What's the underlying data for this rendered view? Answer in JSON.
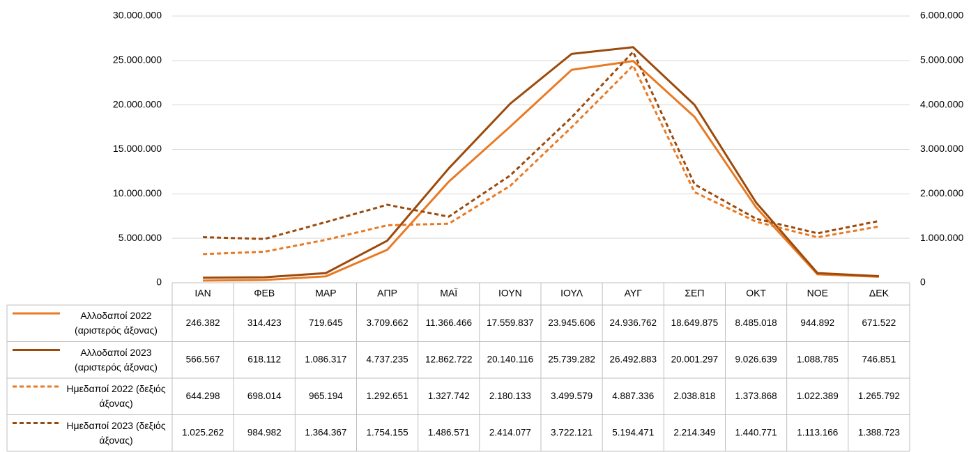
{
  "chart_data": {
    "type": "line",
    "categories": [
      "ΙΑΝ",
      "ΦΕΒ",
      "ΜΑΡ",
      "ΑΠΡ",
      "ΜΑΪ",
      "ΙΟΥΝ",
      "ΙΟΥΛ",
      "ΑΥΓ",
      "ΣΕΠ",
      "ΟΚΤ",
      "ΝΟΕ",
      "ΔΕΚ"
    ],
    "series": [
      {
        "name": "Αλλοδαποί 2022 (αριστερός άξονας)",
        "color": "#e97a24",
        "line_style": "solid",
        "axis": "y",
        "values": [
          246382,
          314423,
          719645,
          3709662,
          11366466,
          17559837,
          23945606,
          24936762,
          18649875,
          8485018,
          944892,
          671522
        ],
        "value_labels": [
          "246.382",
          "314.423",
          "719.645",
          "3.709.662",
          "11.366.466",
          "17.559.837",
          "23.945.606",
          "24.936.762",
          "18.649.875",
          "8.485.018",
          "944.892",
          "671.522"
        ]
      },
      {
        "name": "Αλλοδαποί 2023 (αριστερός άξονας)",
        "color": "#9c4a0c",
        "line_style": "solid",
        "axis": "y",
        "values": [
          566567,
          618112,
          1086317,
          4737235,
          12862722,
          20140116,
          25739282,
          26492883,
          20001297,
          9026639,
          1088785,
          746851
        ],
        "value_labels": [
          "566.567",
          "618.112",
          "1.086.317",
          "4.737.235",
          "12.862.722",
          "20.140.116",
          "25.739.282",
          "26.492.883",
          "20.001.297",
          "9.026.639",
          "1.088.785",
          "746.851"
        ]
      },
      {
        "name": "Ημεδαποί 2022 (δεξιός άξονας)",
        "color": "#e97a24",
        "line_style": "dashed",
        "axis": "y2",
        "values": [
          644298,
          698014,
          965194,
          1292651,
          1327742,
          2180133,
          3499579,
          4887336,
          2038818,
          1373868,
          1022389,
          1265792
        ],
        "value_labels": [
          "644.298",
          "698.014",
          "965.194",
          "1.292.651",
          "1.327.742",
          "2.180.133",
          "3.499.579",
          "4.887.336",
          "2.038.818",
          "1.373.868",
          "1.022.389",
          "1.265.792"
        ]
      },
      {
        "name": "Ημεδαποί 2023 (δεξιός άξονας)",
        "color": "#9c4a0c",
        "line_style": "dashed",
        "axis": "y2",
        "values": [
          1025262,
          984982,
          1364367,
          1754155,
          1486571,
          2414077,
          3722121,
          5194471,
          2214349,
          1440771,
          1113166,
          1388723
        ],
        "value_labels": [
          "1.025.262",
          "984.982",
          "1.364.367",
          "1.754.155",
          "1.486.571",
          "2.414.077",
          "3.722.121",
          "5.194.471",
          "2.214.349",
          "1.440.771",
          "1.113.166",
          "1.388.723"
        ]
      }
    ],
    "ylim": [
      0,
      30000000
    ],
    "yticks": [
      0,
      {
        "value": 5000000,
        "label": "5.000.000"
      },
      {
        "value": 10000000,
        "label": "10.000.000"
      },
      {
        "value": 15000000,
        "label": "15.000.000"
      },
      {
        "value": 20000000,
        "label": "20.000.000"
      },
      {
        "value": 25000000,
        "label": "25.000.000"
      },
      {
        "value": 30000000,
        "label": "30.000.000"
      }
    ],
    "y2lim": [
      0,
      6000000
    ],
    "y2ticks": [
      0,
      {
        "value": 1000000,
        "label": "1.000.000"
      },
      {
        "value": 2000000,
        "label": "2.000.000"
      },
      {
        "value": 3000000,
        "label": "3.000.000"
      },
      {
        "value": 4000000,
        "label": "4.000.000"
      },
      {
        "value": 5000000,
        "label": "5.000.000"
      },
      {
        "value": 6000000,
        "label": "6.000.000"
      }
    ],
    "grid": true,
    "data_table": true
  }
}
